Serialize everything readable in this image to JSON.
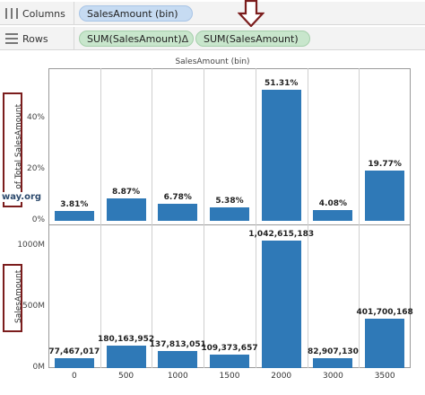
{
  "shelves": {
    "columns": {
      "label": "Columns",
      "pill": "SalesAmount (bin)"
    },
    "rows": {
      "label": "Rows",
      "pill1": "SUM(SalesAmount)",
      "pill1_delta": "Δ",
      "pill2": "SUM(SalesAmount)"
    }
  },
  "watermark": "way.org",
  "chart_data": [
    {
      "type": "bar",
      "title": "SalesAmount (bin)",
      "categories": [
        "0",
        "500",
        "1000",
        "1500",
        "2000",
        "3000",
        "3500"
      ],
      "ylabel": "% of Total SalesAmount",
      "values": [
        3.81,
        8.87,
        6.78,
        5.38,
        51.31,
        4.08,
        19.77
      ],
      "data_labels": [
        "3.81%",
        "8.87%",
        "6.78%",
        "5.38%",
        "51.31%",
        "4.08%",
        "19.77%"
      ],
      "yticks": [
        "0%",
        "20%",
        "40%"
      ],
      "ylim": [
        0,
        55
      ],
      "color": "#2f79b7"
    },
    {
      "type": "bar",
      "categories": [
        "0",
        "500",
        "1000",
        "1500",
        "2000",
        "3000",
        "3500"
      ],
      "ylabel": "SalesAmount",
      "values": [
        77467017,
        180163952,
        137813051,
        109373657,
        1042615183,
        82907130,
        401700168
      ],
      "data_labels": [
        "77,467,017",
        "180,163,952",
        "137,813,051",
        "109,373,657",
        "1,042,615,183",
        "82,907,130",
        "401,700,168"
      ],
      "yticks": [
        "0M",
        "500M",
        "1000M"
      ],
      "ylim": [
        0,
        1100000000
      ],
      "color": "#2f79b7"
    }
  ]
}
